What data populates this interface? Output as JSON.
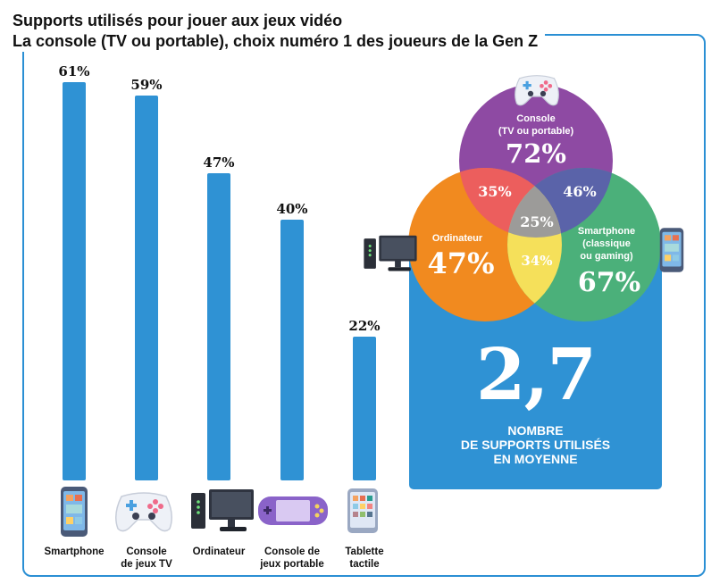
{
  "header": {
    "title": "Supports utilisés pour jouer aux jeux vidéo",
    "subtitle": "La console (TV ou portable), choix numéro 1 des joueurs de la Gen Z"
  },
  "chart_data": [
    {
      "type": "bar",
      "title": "Supports utilisés pour jouer aux jeux vidéo",
      "subtitle": "La console (TV ou portable), choix numéro 1 des joueurs de la Gen Z",
      "categories": [
        [
          "Smartphone"
        ],
        [
          "Console",
          "de jeux TV"
        ],
        [
          "Ordinateur"
        ],
        [
          "Console de",
          "jeux portable"
        ],
        [
          "Tablette",
          "tactile"
        ]
      ],
      "values": [
        61,
        59,
        47,
        40,
        22
      ],
      "value_labels": [
        "61%",
        "59%",
        "47%",
        "40%",
        "22%"
      ],
      "ylim": [
        0,
        100
      ],
      "color": "#2f92d4"
    },
    {
      "type": "venn",
      "sets": [
        {
          "lines": [
            "Console",
            "(TV ou portable)"
          ],
          "value": "72%",
          "color": "#8e4aa3"
        },
        {
          "lines": [
            "Ordinateur"
          ],
          "value": "47%",
          "color": "#f18a1f"
        },
        {
          "lines": [
            "Smartphone",
            "(classique",
            "ou gaming)"
          ],
          "value": "67%",
          "color": "#4bb07a"
        }
      ],
      "overlaps": {
        "console_ordinateur": "35%",
        "console_smartphone": "46%",
        "ordinateur_smartphone": "34%",
        "all_three": "25%"
      },
      "overlap_colors": {
        "console_ordinateur": "#ec5e5d",
        "console_smartphone": "#5a63a9",
        "ordinateur_smartphone": "#f5e05a",
        "all_three": "#9c9b99"
      }
    }
  ],
  "stat": {
    "value": "2,7",
    "caption_lines": [
      "NOMBRE",
      "DE SUPPORTS UTILISÉS",
      "EN MOYENNE"
    ]
  },
  "icons": [
    "smartphone-icon",
    "gamepad-icon",
    "computer-icon",
    "handheld-console-icon",
    "tablet-icon"
  ]
}
